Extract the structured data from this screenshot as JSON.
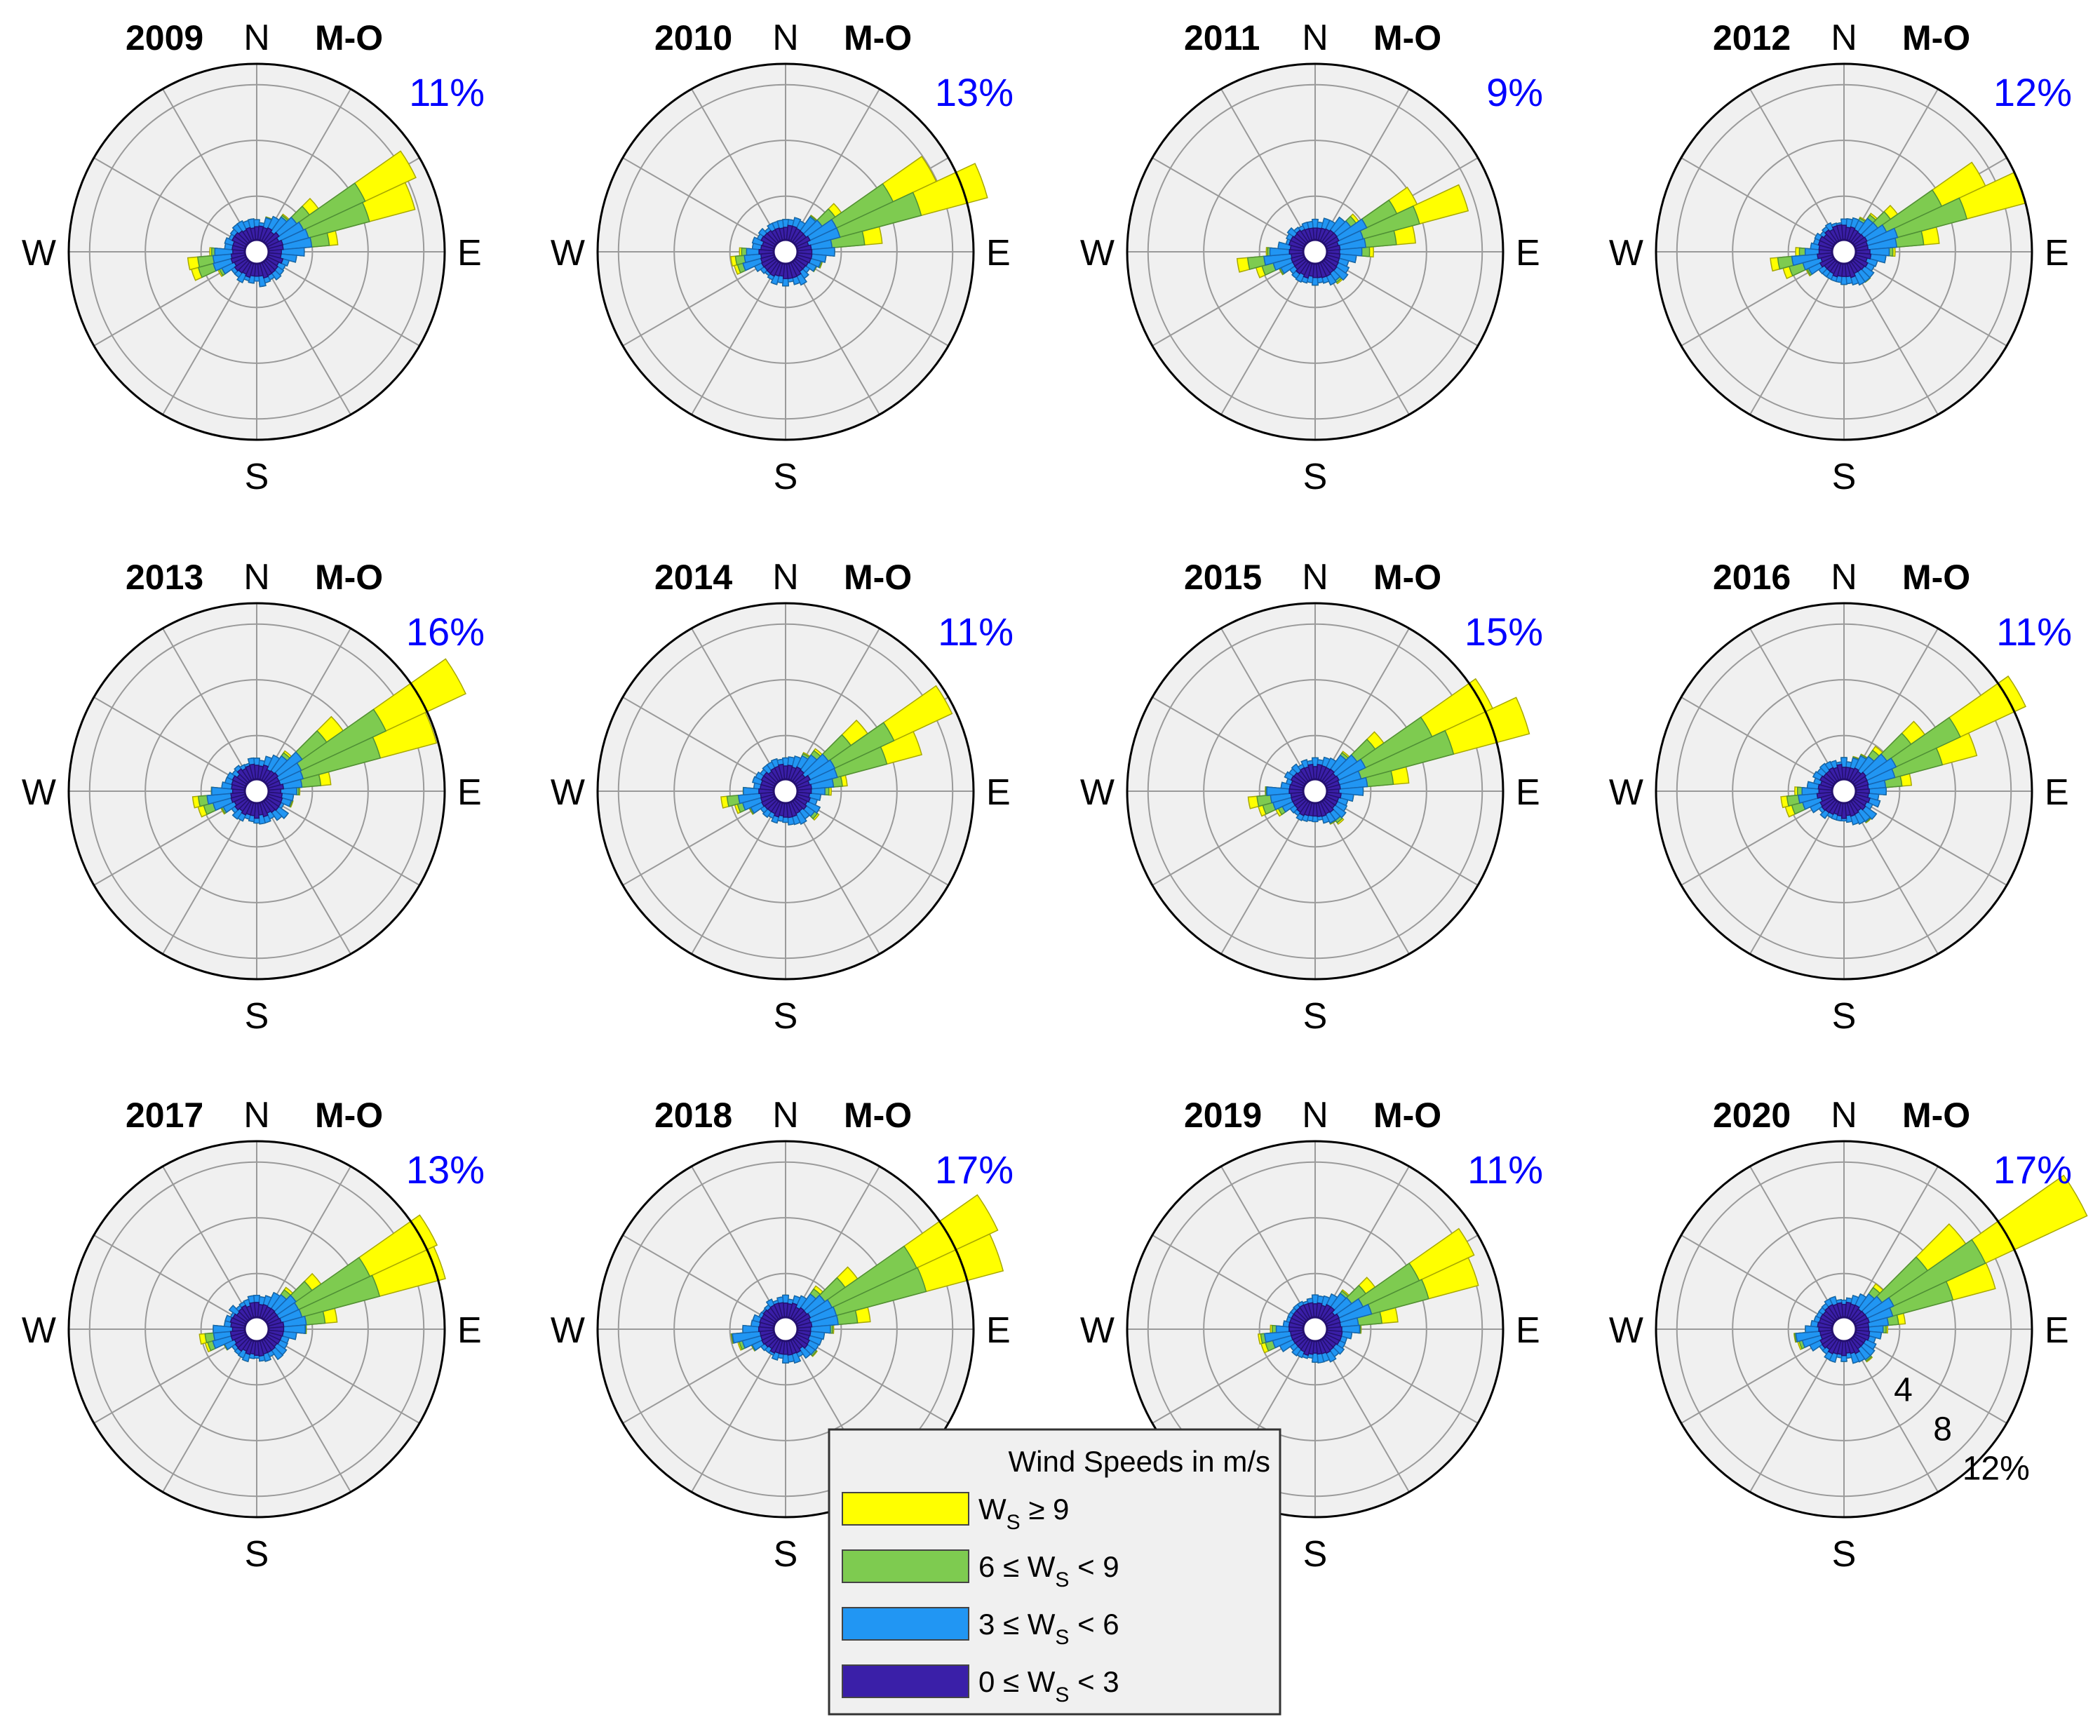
{
  "chart_data": {
    "type": "wind-rose",
    "season": "M-O",
    "units": "%",
    "rticks": [
      4,
      8,
      12
    ],
    "rtick_labels": [
      "4",
      "8",
      "12%"
    ],
    "rmax": 13.5,
    "sectors": 36,
    "directions": [
      "N",
      "E",
      "S",
      "W"
    ],
    "colors": {
      "ws_ge_9": "#ffff00",
      "ws_6_9": "#7ecb50",
      "ws_3_6": "#2196f3",
      "ws_0_3": "#3a1fa8",
      "background": "#f0f0f0",
      "grid": "#9a9a9a",
      "max_label": "#0000ff"
    },
    "legend": {
      "title": "Wind Speeds in m/s",
      "entries": [
        {
          "pre": "W",
          "sub": "S",
          "post": " ≥ 9",
          "color": "#ffff00"
        },
        {
          "pre": "6 ≤ W",
          "sub": "S",
          "post": " < 9",
          "color": "#7ecb50"
        },
        {
          "pre": "3 ≤ W",
          "sub": "S",
          "post": " < 6",
          "color": "#2196f3"
        },
        {
          "pre": "0 ≤ W",
          "sub": "S",
          "post": " < 3",
          "color": "#3a1fa8"
        }
      ]
    },
    "panels": [
      {
        "year": "2009",
        "max_label": "11%",
        "peak_dir": 65,
        "peak": 11.0,
        "west": 4.5
      },
      {
        "year": "2010",
        "max_label": "13%",
        "peak_dir": 67,
        "peak": 13.0,
        "west": 3.5
      },
      {
        "year": "2011",
        "max_label": "9%",
        "peak_dir": 70,
        "peak": 9.0,
        "west": 5.0
      },
      {
        "year": "2012",
        "max_label": "12%",
        "peak_dir": 67,
        "peak": 12.0,
        "west": 5.0
      },
      {
        "year": "2013",
        "max_label": "16%",
        "peak_dir": 63,
        "peak": 16.0,
        "west": 4.5
      },
      {
        "year": "2014",
        "max_label": "11%",
        "peak_dir": 62,
        "peak": 11.0,
        "west": 4.0
      },
      {
        "year": "2015",
        "max_label": "15%",
        "peak_dir": 65,
        "peak": 15.0,
        "west": 4.5
      },
      {
        "year": "2016",
        "max_label": "11%",
        "peak_dir": 62,
        "peak": 11.0,
        "west": 4.5
      },
      {
        "year": "2017",
        "max_label": "13%",
        "peak_dir": 65,
        "peak": 13.0,
        "west": 3.5
      },
      {
        "year": "2018",
        "max_label": "17%",
        "peak_dir": 65,
        "peak": 17.0,
        "west": 3.5
      },
      {
        "year": "2019",
        "max_label": "11%",
        "peak_dir": 65,
        "peak": 11.0,
        "west": 4.0
      },
      {
        "year": "2020",
        "max_label": "17%",
        "peak_dir": 60,
        "peak": 17.0,
        "west": 3.0
      }
    ]
  }
}
